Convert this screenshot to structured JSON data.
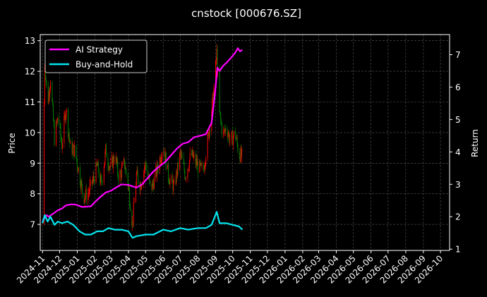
{
  "chart_data": {
    "type": "line",
    "title": "cnstock [000676.SZ]",
    "ylabel_left": "Price",
    "ylabel_right": "Return",
    "y_left_lim": [
      6.15,
      13.2
    ],
    "y_left_ticks": [
      7,
      8,
      9,
      10,
      11,
      12,
      13
    ],
    "y_right_lim": [
      0.96,
      7.62
    ],
    "y_right_ticks": [
      1,
      2,
      3,
      4,
      5,
      6,
      7
    ],
    "x_ticks": [
      "2024-11",
      "2024-12",
      "2025-01",
      "2025-02",
      "2025-03",
      "2025-04",
      "2025-05",
      "2025-06",
      "2025-07",
      "2025-08",
      "2025-09",
      "2025-10",
      "2025-11",
      "2025-12",
      "2026-01",
      "2026-02",
      "2026-03",
      "2026-04",
      "2026-05",
      "2026-06",
      "2026-07",
      "2026-08",
      "2026-09",
      "2026-10"
    ],
    "grid": true,
    "legend_position": "top-left",
    "background": "#000000",
    "colors": {
      "up": "#ff0000",
      "down": "#008000",
      "ai": "#ff00ff",
      "bh": "#00e5ee",
      "grid": "#555555",
      "axis": "#ffffff"
    },
    "price_path": [
      [
        "2024-11-01",
        7.0
      ],
      [
        "2024-11-05",
        12.3
      ],
      [
        "2024-11-10",
        10.9
      ],
      [
        "2024-11-15",
        11.8
      ],
      [
        "2024-11-22",
        9.8
      ],
      [
        "2024-11-28",
        10.5
      ],
      [
        "2024-12-05",
        9.6
      ],
      [
        "2024-12-12",
        10.8
      ],
      [
        "2024-12-20",
        9.5
      ],
      [
        "2024-12-28",
        9.4
      ],
      [
        "2025-01-05",
        8.6
      ],
      [
        "2025-01-12",
        7.9
      ],
      [
        "2025-01-20",
        8.0
      ],
      [
        "2025-01-28",
        8.4
      ],
      [
        "2025-02-05",
        8.9
      ],
      [
        "2025-02-12",
        8.3
      ],
      [
        "2025-02-20",
        9.4
      ],
      [
        "2025-02-28",
        8.8
      ],
      [
        "2025-03-08",
        9.3
      ],
      [
        "2025-03-15",
        8.5
      ],
      [
        "2025-03-25",
        9.0
      ],
      [
        "2025-04-01",
        8.2
      ],
      [
        "2025-04-08",
        7.0
      ],
      [
        "2025-04-15",
        8.6
      ],
      [
        "2025-04-22",
        8.3
      ],
      [
        "2025-05-01",
        9.0
      ],
      [
        "2025-05-10",
        8.1
      ],
      [
        "2025-05-20",
        8.7
      ],
      [
        "2025-06-01",
        9.6
      ],
      [
        "2025-06-10",
        8.6
      ],
      [
        "2025-06-20",
        8.2
      ],
      [
        "2025-07-01",
        9.3
      ],
      [
        "2025-07-10",
        8.6
      ],
      [
        "2025-07-20",
        9.3
      ],
      [
        "2025-08-01",
        8.9
      ],
      [
        "2025-08-10",
        8.7
      ],
      [
        "2025-08-20",
        10.0
      ],
      [
        "2025-08-28",
        11.2
      ],
      [
        "2025-09-03",
        12.6
      ],
      [
        "2025-09-08",
        10.6
      ],
      [
        "2025-09-14",
        9.9
      ],
      [
        "2025-09-20",
        10.2
      ],
      [
        "2025-09-27",
        9.7
      ],
      [
        "2025-10-05",
        10.0
      ],
      [
        "2025-10-12",
        9.3
      ],
      [
        "2025-10-18",
        9.2
      ]
    ],
    "series": [
      {
        "name": "AI Strategy",
        "axis": "right",
        "points": [
          [
            "2024-11-01",
            1.85
          ],
          [
            "2024-11-08",
            2.05
          ],
          [
            "2024-11-12",
            2.0
          ],
          [
            "2024-11-20",
            2.1
          ],
          [
            "2024-11-28",
            2.2
          ],
          [
            "2024-12-05",
            2.25
          ],
          [
            "2024-12-12",
            2.35
          ],
          [
            "2024-12-20",
            2.38
          ],
          [
            "2024-12-28",
            2.38
          ],
          [
            "2025-01-10",
            2.3
          ],
          [
            "2025-01-25",
            2.32
          ],
          [
            "2025-02-01",
            2.45
          ],
          [
            "2025-02-10",
            2.6
          ],
          [
            "2025-02-20",
            2.75
          ],
          [
            "2025-03-01",
            2.8
          ],
          [
            "2025-03-10",
            2.9
          ],
          [
            "2025-03-20",
            3.0
          ],
          [
            "2025-04-01",
            2.98
          ],
          [
            "2025-04-15",
            2.9
          ],
          [
            "2025-04-25",
            3.0
          ],
          [
            "2025-05-05",
            3.2
          ],
          [
            "2025-05-15",
            3.4
          ],
          [
            "2025-05-25",
            3.55
          ],
          [
            "2025-06-05",
            3.7
          ],
          [
            "2025-06-15",
            3.9
          ],
          [
            "2025-06-25",
            4.1
          ],
          [
            "2025-07-05",
            4.25
          ],
          [
            "2025-07-15",
            4.3
          ],
          [
            "2025-07-25",
            4.45
          ],
          [
            "2025-08-05",
            4.5
          ],
          [
            "2025-08-15",
            4.55
          ],
          [
            "2025-08-25",
            4.9
          ],
          [
            "2025-08-31",
            5.8
          ],
          [
            "2025-09-04",
            6.6
          ],
          [
            "2025-09-08",
            6.5
          ],
          [
            "2025-09-14",
            6.65
          ],
          [
            "2025-09-20",
            6.75
          ],
          [
            "2025-09-28",
            6.9
          ],
          [
            "2025-10-05",
            7.05
          ],
          [
            "2025-10-10",
            7.2
          ],
          [
            "2025-10-14",
            7.1
          ],
          [
            "2025-10-18",
            7.15
          ]
        ]
      },
      {
        "name": "Buy-and-Hold",
        "axis": "right",
        "points": [
          [
            "2024-11-01",
            1.8
          ],
          [
            "2024-11-05",
            2.05
          ],
          [
            "2024-11-10",
            1.85
          ],
          [
            "2024-11-15",
            2.0
          ],
          [
            "2024-11-22",
            1.75
          ],
          [
            "2024-11-28",
            1.85
          ],
          [
            "2024-12-05",
            1.8
          ],
          [
            "2024-12-15",
            1.85
          ],
          [
            "2024-12-25",
            1.75
          ],
          [
            "2025-01-05",
            1.55
          ],
          [
            "2025-01-15",
            1.45
          ],
          [
            "2025-01-25",
            1.45
          ],
          [
            "2025-02-05",
            1.55
          ],
          [
            "2025-02-15",
            1.55
          ],
          [
            "2025-02-25",
            1.65
          ],
          [
            "2025-03-08",
            1.6
          ],
          [
            "2025-03-20",
            1.6
          ],
          [
            "2025-04-01",
            1.55
          ],
          [
            "2025-04-08",
            1.35
          ],
          [
            "2025-04-15",
            1.4
          ],
          [
            "2025-05-01",
            1.45
          ],
          [
            "2025-05-15",
            1.45
          ],
          [
            "2025-06-01",
            1.6
          ],
          [
            "2025-06-15",
            1.55
          ],
          [
            "2025-07-01",
            1.65
          ],
          [
            "2025-07-15",
            1.6
          ],
          [
            "2025-08-01",
            1.65
          ],
          [
            "2025-08-15",
            1.65
          ],
          [
            "2025-08-25",
            1.75
          ],
          [
            "2025-09-03",
            2.15
          ],
          [
            "2025-09-08",
            1.8
          ],
          [
            "2025-09-20",
            1.8
          ],
          [
            "2025-10-01",
            1.75
          ],
          [
            "2025-10-12",
            1.7
          ],
          [
            "2025-10-18",
            1.6
          ]
        ]
      }
    ]
  }
}
